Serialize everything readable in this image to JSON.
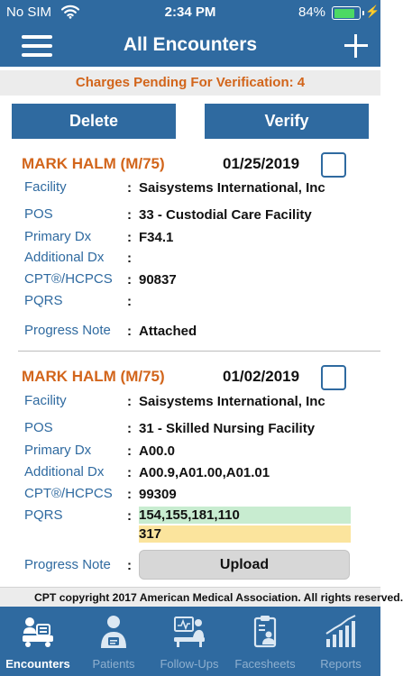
{
  "status_bar": {
    "carrier": "No SIM",
    "time": "2:34 PM",
    "battery_percent": "84%",
    "battery_level": 0.84
  },
  "nav": {
    "title": "All Encounters",
    "left_icon": "hamburger-menu-icon",
    "right_icon": "plus-icon"
  },
  "banner": {
    "text": "Charges Pending For Verification: 4"
  },
  "actions": {
    "delete_label": "Delete",
    "verify_label": "Verify"
  },
  "encounters": [
    {
      "patient": "MARK HALM (M/75)",
      "date": "01/25/2019",
      "fields": {
        "facility_label": "Facility",
        "facility": "Saisystems International, Inc",
        "pos_label": "POS",
        "pos": "33 - Custodial Care Facility",
        "primary_dx_label": "Primary Dx",
        "primary_dx": "F34.1",
        "additional_dx_label": "Additional Dx",
        "additional_dx": "",
        "cpt_label": "CPT®/HCPCS",
        "cpt": "90837",
        "pqrs_label": "PQRS",
        "pqrs": "",
        "progress_note_label": "Progress Note",
        "progress_note": "Attached"
      }
    },
    {
      "patient": "MARK HALM (M/75)",
      "date": "01/02/2019",
      "fields": {
        "facility_label": "Facility",
        "facility": "Saisystems International, Inc",
        "pos_label": "POS",
        "pos": "31 - Skilled Nursing Facility",
        "primary_dx_label": "Primary Dx",
        "primary_dx": "A00.0",
        "additional_dx_label": "Additional Dx",
        "additional_dx": "A00.9,A01.00,A01.01",
        "cpt_label": "CPT®/HCPCS",
        "cpt": "99309",
        "pqrs_label": "PQRS",
        "pqrs_line1": "154,155,181,110",
        "pqrs_line2": "317",
        "progress_note_label": "Progress Note",
        "upload_label": "Upload"
      }
    }
  ],
  "colon": ":",
  "footer": {
    "copyright": "CPT copyright 2017 American Medical Association. All rights reserved."
  },
  "tabs": [
    {
      "label": "Encounters",
      "icon": "encounters-icon",
      "active": true
    },
    {
      "label": "Patients",
      "icon": "patient-icon",
      "active": false
    },
    {
      "label": "Follow-Ups",
      "icon": "follow-ups-icon",
      "active": false
    },
    {
      "label": "Facesheets",
      "icon": "facesheet-icon",
      "active": false
    },
    {
      "label": "Reports",
      "icon": "bar-chart-icon",
      "active": false
    }
  ],
  "colors": {
    "primary": "#2f6aa0",
    "accent_orange": "#d2651b",
    "pqrs_green": "#c8ecd0",
    "pqrs_yellow": "#fbe49d",
    "battery_green": "#4cd964"
  }
}
